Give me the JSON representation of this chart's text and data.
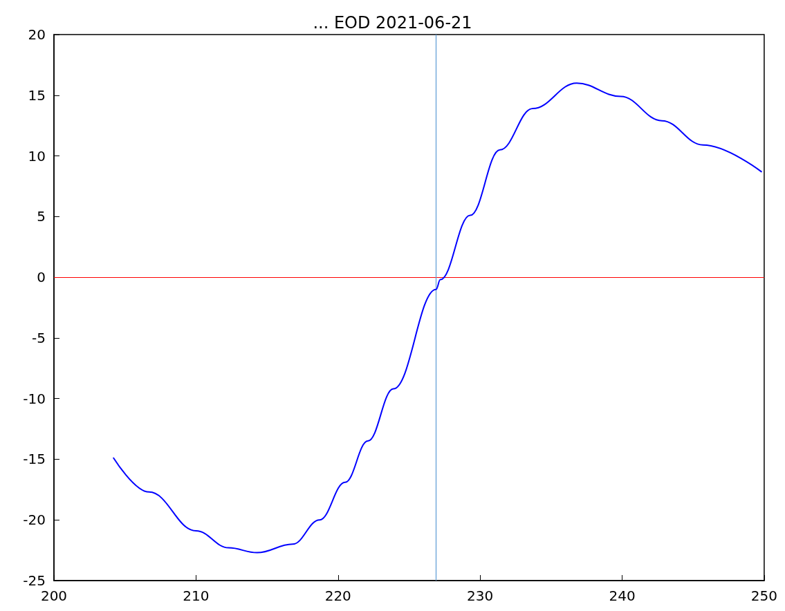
{
  "chart_data": {
    "type": "line",
    "title": "... EOD 2021-06-21",
    "x": [
      204.2,
      206.7,
      210,
      212.3,
      214.3,
      216.8,
      218.7,
      220.5,
      222.1,
      223.9,
      226.9,
      227.2,
      229.3,
      231.4,
      233.7,
      236.8,
      239.9,
      242.8,
      245.7,
      249.8
    ],
    "series": [
      {
        "color": "#0000ff",
        "values": [
          -14.9,
          -17.7,
          -20.9,
          -22.3,
          -22.7,
          -22.0,
          -20.0,
          -16.9,
          -13.5,
          -9.2,
          -1.0,
          -0.2,
          5.1,
          10.5,
          13.9,
          16.0,
          14.9,
          12.9,
          10.9,
          8.7
        ]
      }
    ],
    "xlim": [
      200,
      250
    ],
    "xticks": [
      200,
      210,
      220,
      230,
      240,
      250
    ],
    "ylim": [
      -25,
      20
    ],
    "yticks": [
      -25,
      -20,
      -15,
      -10,
      -5,
      0,
      5,
      10,
      15,
      20
    ],
    "ref_lines": [
      {
        "axis": "y",
        "value": 0,
        "color": "#ff0000"
      },
      {
        "axis": "x",
        "value": 226.9,
        "color": "#5b9bd5"
      }
    ],
    "grid": false,
    "marker": "none",
    "line_style": "solid"
  }
}
